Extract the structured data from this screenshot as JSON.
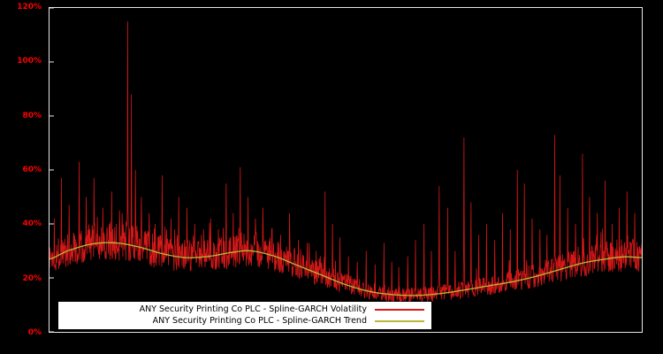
{
  "chart_data": {
    "type": "line",
    "title": "",
    "xlabel": "",
    "ylabel": "",
    "background_color": "#000000",
    "frame_color": "#e8e8e8",
    "ylim": [
      0,
      120
    ],
    "y_axis": {
      "tick_labels": [
        "0%",
        "20%",
        "40%",
        "60%",
        "80%",
        "100%",
        "120%"
      ],
      "tick_values": [
        0,
        20,
        40,
        60,
        80,
        100,
        120
      ],
      "label_color": "#ff0000"
    },
    "x_axis": {
      "tick_labels": []
    },
    "legend": {
      "position": "bottom-left",
      "background": "#ffffff",
      "text_color": "#000000"
    },
    "series": [
      {
        "name": "ANY Security Printing Co PLC - Spline-GARCH Volatility",
        "color": "#d61818",
        "style": "noisy-line",
        "n_points": 1600,
        "seed": 1337,
        "noise_low": 0.8,
        "noise_high": 1.24,
        "burst_prob": 0.05,
        "burst_extra": 1.45,
        "spikes": [
          [
            0.008,
            42
          ],
          [
            0.02,
            57
          ],
          [
            0.033,
            47
          ],
          [
            0.05,
            63
          ],
          [
            0.062,
            50
          ],
          [
            0.075,
            57
          ],
          [
            0.09,
            46
          ],
          [
            0.105,
            52
          ],
          [
            0.118,
            45
          ],
          [
            0.132,
            115
          ],
          [
            0.138,
            88
          ],
          [
            0.145,
            60
          ],
          [
            0.155,
            50
          ],
          [
            0.168,
            44
          ],
          [
            0.178,
            40
          ],
          [
            0.19,
            58
          ],
          [
            0.205,
            42
          ],
          [
            0.218,
            50
          ],
          [
            0.232,
            46
          ],
          [
            0.245,
            40
          ],
          [
            0.26,
            38
          ],
          [
            0.272,
            42
          ],
          [
            0.285,
            38
          ],
          [
            0.298,
            55
          ],
          [
            0.31,
            44
          ],
          [
            0.322,
            61
          ],
          [
            0.335,
            50
          ],
          [
            0.348,
            42
          ],
          [
            0.36,
            46
          ],
          [
            0.375,
            38
          ],
          [
            0.39,
            36
          ],
          [
            0.405,
            44
          ],
          [
            0.42,
            34
          ],
          [
            0.435,
            33
          ],
          [
            0.45,
            30
          ],
          [
            0.465,
            52
          ],
          [
            0.478,
            40
          ],
          [
            0.49,
            35
          ],
          [
            0.505,
            28
          ],
          [
            0.52,
            26
          ],
          [
            0.535,
            30
          ],
          [
            0.55,
            25
          ],
          [
            0.565,
            33
          ],
          [
            0.578,
            26
          ],
          [
            0.59,
            24
          ],
          [
            0.605,
            28
          ],
          [
            0.618,
            34
          ],
          [
            0.632,
            40
          ],
          [
            0.645,
            30
          ],
          [
            0.658,
            54
          ],
          [
            0.672,
            46
          ],
          [
            0.685,
            30
          ],
          [
            0.7,
            72
          ],
          [
            0.712,
            48
          ],
          [
            0.725,
            36
          ],
          [
            0.738,
            40
          ],
          [
            0.752,
            34
          ],
          [
            0.765,
            44
          ],
          [
            0.778,
            38
          ],
          [
            0.79,
            60
          ],
          [
            0.802,
            55
          ],
          [
            0.815,
            42
          ],
          [
            0.828,
            38
          ],
          [
            0.84,
            36
          ],
          [
            0.853,
            73
          ],
          [
            0.862,
            58
          ],
          [
            0.875,
            46
          ],
          [
            0.888,
            40
          ],
          [
            0.9,
            66
          ],
          [
            0.912,
            50
          ],
          [
            0.925,
            44
          ],
          [
            0.938,
            56
          ],
          [
            0.95,
            40
          ],
          [
            0.962,
            46
          ],
          [
            0.975,
            52
          ],
          [
            0.988,
            44
          ]
        ]
      },
      {
        "name": "ANY Security Printing Co PLC - Spline-GARCH Trend",
        "color": "#b9b93a",
        "style": "smooth-line",
        "points": [
          [
            0,
            27
          ],
          [
            0.03,
            30
          ],
          [
            0.07,
            32.5
          ],
          [
            0.11,
            33
          ],
          [
            0.15,
            31.5
          ],
          [
            0.19,
            29
          ],
          [
            0.23,
            27.5
          ],
          [
            0.27,
            28
          ],
          [
            0.31,
            29.5
          ],
          [
            0.34,
            30
          ],
          [
            0.38,
            28
          ],
          [
            0.42,
            24.5
          ],
          [
            0.46,
            21
          ],
          [
            0.5,
            17.5
          ],
          [
            0.54,
            15
          ],
          [
            0.58,
            13.8
          ],
          [
            0.62,
            13.5
          ],
          [
            0.66,
            14.2
          ],
          [
            0.7,
            15.5
          ],
          [
            0.74,
            17
          ],
          [
            0.78,
            18.5
          ],
          [
            0.82,
            20.5
          ],
          [
            0.86,
            23
          ],
          [
            0.9,
            25.5
          ],
          [
            0.94,
            27
          ],
          [
            0.97,
            27.8
          ],
          [
            1,
            27.5
          ]
        ]
      }
    ]
  }
}
